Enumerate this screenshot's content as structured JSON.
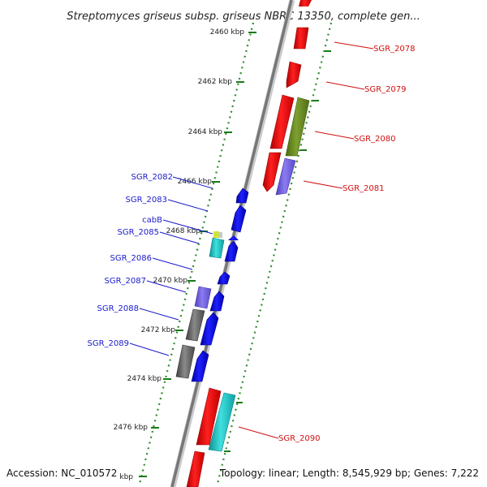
{
  "title": "Streptomyces griseus subsp. griseus NBRC 13350, complete gen...",
  "footer": {
    "accession": "Accession: NC_010572",
    "topology": "Topology: linear; Length: 8,545,929 bp; Genes: 7,222"
  },
  "colors": {
    "backbone": "#888888",
    "ruler": "#2e8b2e",
    "left_label": "#1a1acc",
    "right_label": "#d01010",
    "red": "#ff0000",
    "blue": "#0000ff",
    "cyan": "#20c8c8",
    "olive": "#6b8e23",
    "purple": "#7b68ee",
    "gray": "#707070"
  },
  "ruler_ticks": [
    {
      "label": "2460 kbp"
    },
    {
      "label": "2462 kbp"
    },
    {
      "label": "2464 kbp"
    },
    {
      "label": "2466 kbp"
    },
    {
      "label": "2468 kbp"
    },
    {
      "label": "2470 kbp"
    },
    {
      "label": "2472 kbp"
    },
    {
      "label": "2474 kbp"
    },
    {
      "label": "2476 kbp"
    },
    {
      "label": "kbp"
    }
  ],
  "right_genes": [
    {
      "label": "SGR_2078"
    },
    {
      "label": "SGR_2079"
    },
    {
      "label": "SGR_2080"
    },
    {
      "label": "SGR_2081"
    },
    {
      "label": "SGR_2090"
    }
  ],
  "left_genes": [
    {
      "label": "SGR_2082"
    },
    {
      "label": "SGR_2083"
    },
    {
      "label": "cabB"
    },
    {
      "label": "SGR_2085"
    },
    {
      "label": "SGR_2086"
    },
    {
      "label": "SGR_2087"
    },
    {
      "label": "SGR_2088"
    },
    {
      "label": "SGR_2089"
    }
  ]
}
